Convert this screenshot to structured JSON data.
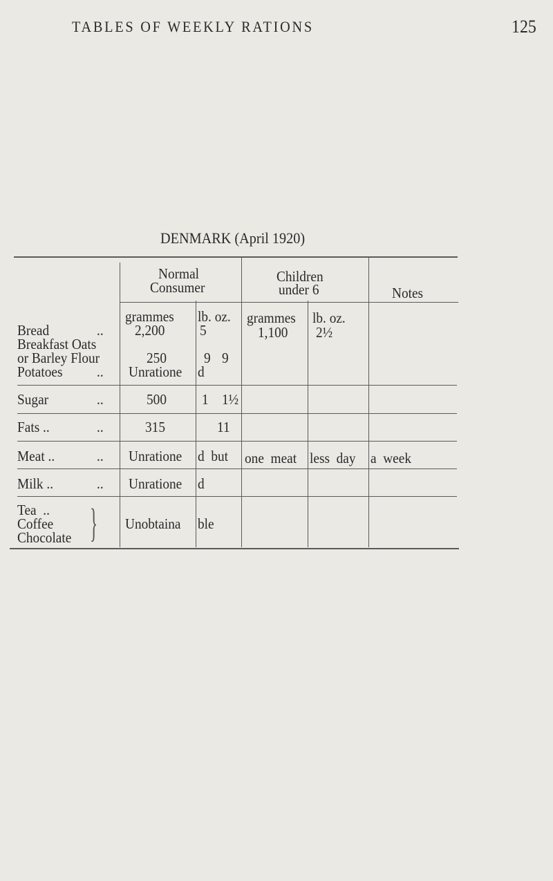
{
  "running_header": {
    "title": "TABLES OF WEEKLY RATIONS",
    "page_number": "125"
  },
  "table": {
    "title": "DENMARK (April 1920)",
    "headers": {
      "normal_consumer": [
        "Normal",
        "Consumer"
      ],
      "children_under_6": [
        "Children",
        "under 6"
      ],
      "notes": "Notes",
      "sub": {
        "n_grammes": "grammes",
        "n_lboz": "lb.  oz.",
        "c_grammes": "grammes",
        "c_lboz": "lb.  oz."
      }
    },
    "rows": {
      "bread": {
        "label": "Bread",
        "dots": "..",
        "grammes": "2,200",
        "lb": "5",
        "c_grammes": "1,100",
        "c_lb": "2½"
      },
      "oats": {
        "label1": "Breakfast Oats",
        "label2": "or Barley Flour",
        "grammes": "250",
        "lb": "9",
        "oz": "9"
      },
      "potatoes": {
        "label": "Potatoes",
        "dots": "..",
        "value_a": "Unratione",
        "value_b": "d"
      },
      "sugar": {
        "label": "Sugar",
        "dots": "..",
        "grammes": "500",
        "lb": "1",
        "oz": "1½"
      },
      "fats": {
        "label": "Fats ..",
        "dots": "..",
        "grammes": "315",
        "oz": "11"
      },
      "meat": {
        "label": "Meat ..",
        "dots": "..",
        "a": "Unratione",
        "b": "d  but",
        "c": "one  meat",
        "d": "less  day",
        "e": "a  week"
      },
      "milk": {
        "label": "Milk ..",
        "dots": "..",
        "a": "Unratione",
        "b": "d"
      },
      "tea": {
        "label1": "Tea  ..",
        "label2": "Coffee",
        "label3": "Chocolate",
        "brace": "}",
        "a": "Unobtaina",
        "b": "ble"
      }
    }
  }
}
